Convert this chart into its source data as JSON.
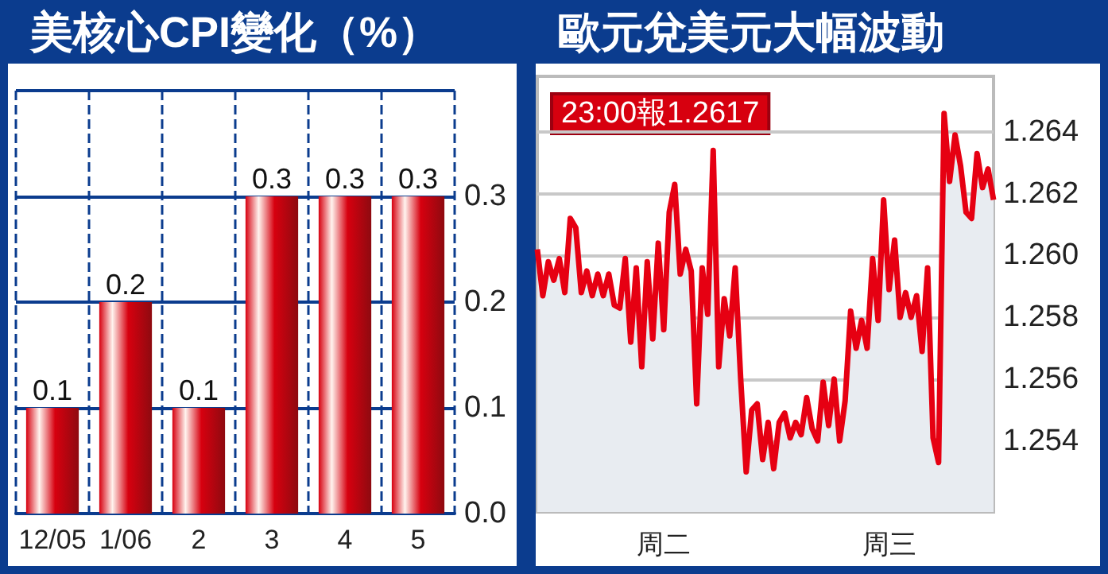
{
  "chart_data": [
    {
      "type": "bar",
      "title": "美核心CPI變化（%）",
      "categories": [
        "12/05",
        "1/06",
        "2",
        "3",
        "4",
        "5"
      ],
      "values": [
        0.1,
        0.2,
        0.1,
        0.3,
        0.3,
        0.3
      ],
      "color": "#d7000f",
      "ylim": [
        0,
        0.4
      ],
      "yticks": [
        {
          "value": 0,
          "label": "0.0"
        },
        0.1,
        0.2,
        0.3,
        {
          "value": 0.4,
          "label": null
        }
      ],
      "grid": true,
      "data_labels": true
    },
    {
      "type": "area",
      "title": "歐元兌美元大幅波動",
      "annotations": [
        "23:00報1.2617"
      ],
      "color": "#e60012",
      "categories": [
        null,
        null,
        null,
        null,
        null,
        null,
        null,
        null,
        null,
        null,
        null,
        null,
        null,
        null,
        null,
        null,
        null,
        null,
        null,
        null,
        null,
        null,
        null,
        "周二",
        null,
        null,
        null,
        null,
        null,
        null,
        null,
        null,
        null,
        null,
        null,
        null,
        null,
        null,
        null,
        null,
        null,
        null,
        null,
        null,
        null,
        null,
        null,
        null,
        null,
        null,
        null,
        null,
        null,
        null,
        null,
        null,
        null,
        null,
        null,
        null,
        null,
        null,
        null,
        null,
        "周三",
        null,
        null,
        null,
        null,
        null,
        null,
        null,
        null,
        null,
        null,
        null,
        null,
        null,
        null,
        null,
        null,
        null,
        null,
        null
      ],
      "values": [
        1.2602,
        1.2587,
        1.2598,
        1.2592,
        1.2599,
        1.2588,
        1.2612,
        1.2609,
        1.2588,
        1.2595,
        1.2587,
        1.2594,
        1.2587,
        1.2594,
        1.2584,
        1.2583,
        1.2599,
        1.2572,
        1.2596,
        1.2564,
        1.2598,
        1.2573,
        1.2604,
        1.2576,
        1.2614,
        1.2623,
        1.2594,
        1.2602,
        1.2595,
        1.2552,
        1.2596,
        1.2581,
        1.2634,
        1.2564,
        1.2586,
        1.2574,
        1.2596,
        1.256,
        1.253,
        1.255,
        1.2552,
        1.2534,
        1.2546,
        1.2531,
        1.2546,
        1.2549,
        1.2541,
        1.2546,
        1.2542,
        1.2554,
        1.2544,
        1.254,
        1.2559,
        1.2545,
        1.256,
        1.254,
        1.2553,
        1.2582,
        1.257,
        1.2579,
        1.257,
        1.2599,
        1.2579,
        1.2618,
        1.2589,
        1.2605,
        1.258,
        1.2588,
        1.258,
        1.2587,
        1.2569,
        1.2596,
        1.2541,
        1.2533,
        1.2646,
        1.2624,
        1.2639,
        1.2629,
        1.2614,
        1.2612,
        1.2633,
        1.2622,
        1.2628,
        1.2618
      ],
      "ylim": [
        1.2517,
        1.2658
      ],
      "yticks": [
        1.254,
        1.256,
        1.258,
        {
          "value": 1.26,
          "label": "1.260"
        },
        1.262,
        1.264
      ],
      "grid": "y"
    }
  ]
}
